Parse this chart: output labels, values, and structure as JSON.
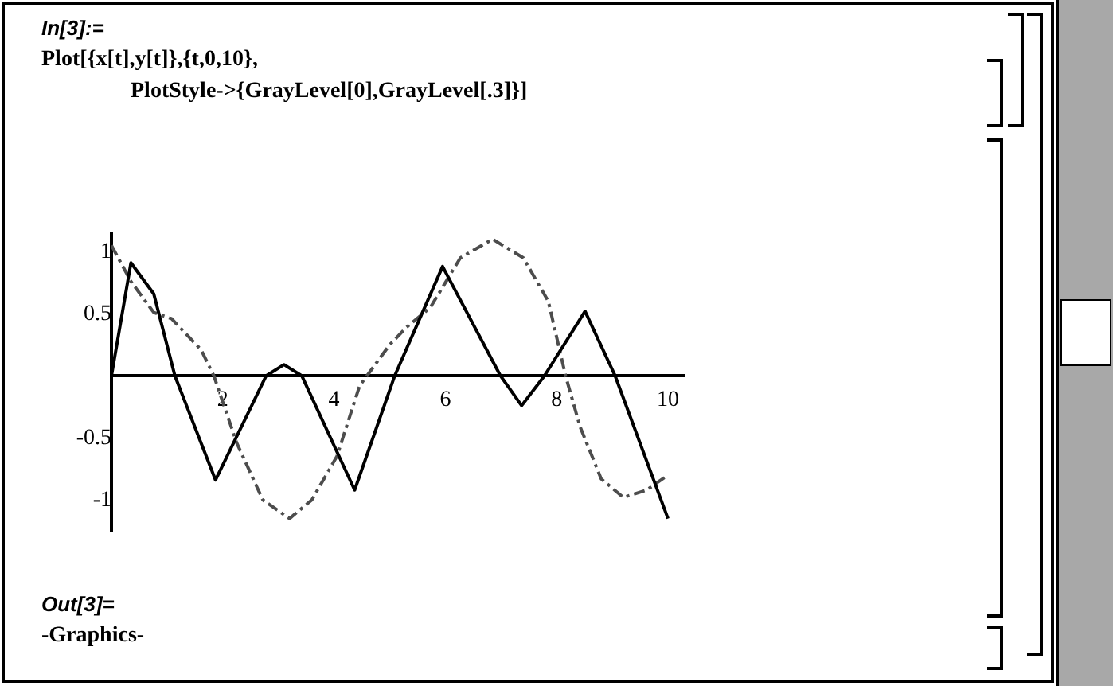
{
  "chart_data": {
    "type": "line",
    "annotations": [
      "In[3]:=",
      "Plot[{x[t],y[t]},{t,0,10},",
      "PlotStyle->{GrayLevel[0],GrayLevel[.3]}]",
      "Out[3]=",
      "-Graphics-"
    ],
    "series": [
      {
        "color": "#000000",
        "line_style": "solid",
        "x": [
          0,
          0.35,
          0.76,
          1.14,
          1.87,
          2.78,
          3.1,
          3.42,
          4.37,
          5.09,
          5.95,
          6.99,
          7.37,
          7.78,
          8.51,
          9.05,
          10
        ],
        "values": [
          0,
          0.91,
          0.66,
          0,
          -0.84,
          0,
          0.09,
          0,
          -0.92,
          0,
          0.88,
          0,
          -0.24,
          0,
          0.52,
          0,
          -1.15
        ]
      },
      {
        "color": "#4d4d4d",
        "line_style": "dashed",
        "x": [
          0,
          0.35,
          0.76,
          1.08,
          1.61,
          1.84,
          2.25,
          2.72,
          3.2,
          3.6,
          4.05,
          4.46,
          5.0,
          5.3,
          5.73,
          6.27,
          6.85,
          7.4,
          7.85,
          8.16,
          8.42,
          8.8,
          9.2,
          9.62,
          10
        ],
        "values": [
          1.05,
          0.76,
          0.51,
          0.46,
          0.21,
          0,
          -0.54,
          -1.0,
          -1.15,
          -1.0,
          -0.65,
          -0.08,
          0.25,
          0.39,
          0.55,
          0.95,
          1.1,
          0.95,
          0.6,
          0,
          -0.41,
          -0.83,
          -0.98,
          -0.92,
          -0.8
        ]
      }
    ],
    "xlim": [
      0,
      10.3
    ],
    "xticks": [
      2,
      4,
      6,
      8,
      10
    ],
    "ylim": [
      -1.25,
      1.15
    ],
    "yticks": [
      -1,
      -0.5,
      0.5,
      1
    ],
    "grid": false,
    "legend": false,
    "marker": "none"
  }
}
